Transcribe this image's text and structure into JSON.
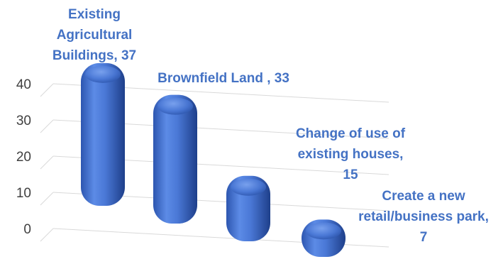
{
  "chart_data": {
    "type": "bar",
    "title": "",
    "xlabel": "",
    "ylabel": "",
    "ylim": [
      0,
      40
    ],
    "yticks": [
      "0",
      "10",
      "20",
      "30",
      "40"
    ],
    "grid": true,
    "style": "3d-cylinder-rounded",
    "bar_color": "#4A78D6",
    "label_color": "#4472C4",
    "categories": [
      "Existing Agricultural Buildings",
      "Brownfield Land",
      "Change of use of existing houses",
      "Create a new retail/business park"
    ],
    "values": [
      37,
      33,
      15,
      7
    ],
    "data_labels": [
      [
        "Existing",
        "Agricultural",
        "Buildings, 37"
      ],
      [
        "Brownfield Land , 33"
      ],
      [
        "Change of use of",
        "existing houses,",
        "15"
      ],
      [
        "Create a new",
        "retail/business park,",
        "7"
      ]
    ]
  }
}
